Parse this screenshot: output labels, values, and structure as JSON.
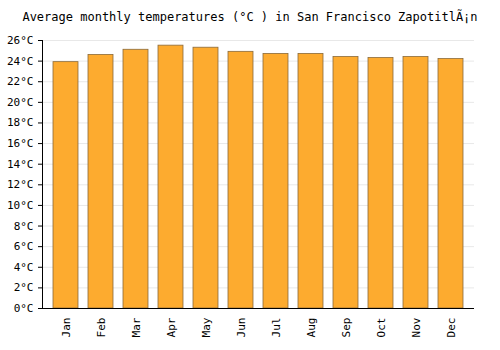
{
  "chart_data": {
    "type": "bar",
    "title": "Average monthly temperatures (°C ) in San Francisco ZapotitlÃ¡n",
    "categories": [
      "Jan",
      "Feb",
      "Mar",
      "Apr",
      "May",
      "Jun",
      "Jul",
      "Aug",
      "Sep",
      "Oct",
      "Nov",
      "Dec"
    ],
    "values": [
      23.9,
      24.6,
      25.1,
      25.5,
      25.3,
      24.9,
      24.7,
      24.7,
      24.4,
      24.3,
      24.4,
      24.2
    ],
    "color": "#fdab2f",
    "ylim": [
      0,
      26
    ],
    "yticks": [
      {
        "value": 0,
        "label": "0°C"
      },
      {
        "value": 2,
        "label": "2°C"
      },
      {
        "value": 4,
        "label": "4°C"
      },
      {
        "value": 6,
        "label": "6°C"
      },
      {
        "value": 8,
        "label": "8°C"
      },
      {
        "value": 10,
        "label": "10°C"
      },
      {
        "value": 12,
        "label": "12°C"
      },
      {
        "value": 14,
        "label": "14°C"
      },
      {
        "value": 16,
        "label": "16°C"
      },
      {
        "value": 18,
        "label": "18°C"
      },
      {
        "value": 20,
        "label": "20°C"
      },
      {
        "value": 22,
        "label": "22°C"
      },
      {
        "value": 24,
        "label": "24°C"
      },
      {
        "value": 26,
        "label": "26°C"
      }
    ],
    "grid": true
  }
}
